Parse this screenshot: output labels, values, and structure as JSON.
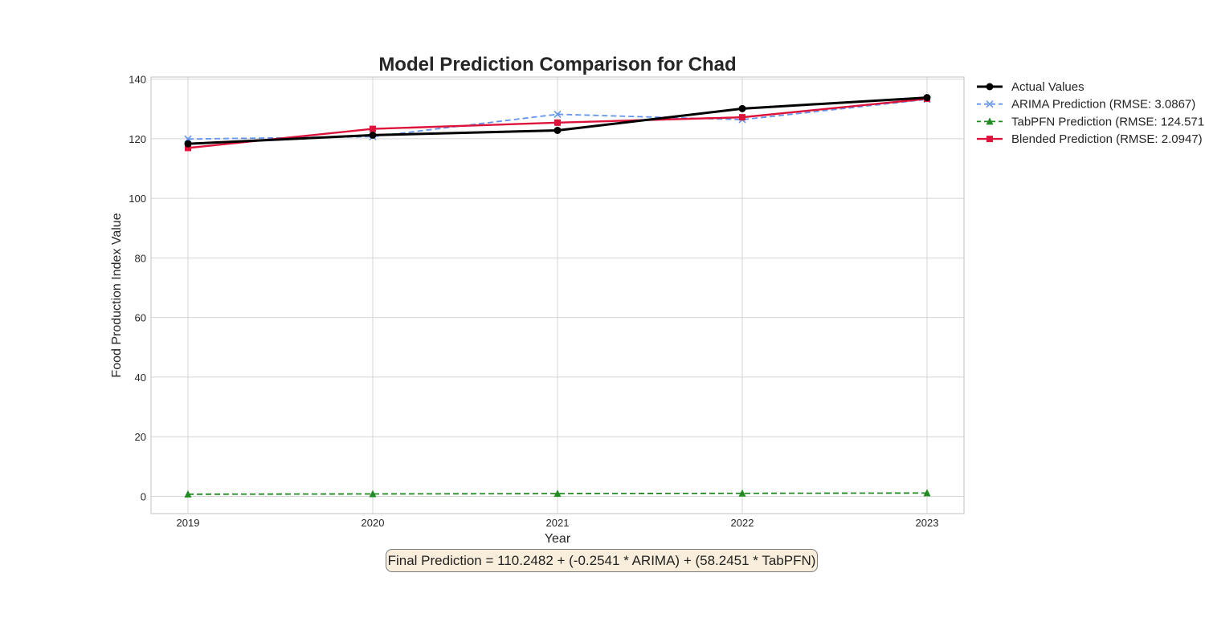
{
  "chart_data": {
    "type": "line",
    "title": "Model Prediction Comparison for Chad",
    "xlabel": "Year",
    "ylabel": "Food Production Index Value",
    "x": [
      2019,
      2020,
      2021,
      2022,
      2023
    ],
    "xlim": [
      2018.8,
      2023.2
    ],
    "ylim": [
      -5.8,
      140.7
    ],
    "yticks": [
      0,
      20,
      40,
      60,
      80,
      100,
      120,
      140
    ],
    "grid": true,
    "legend_position": "outside-right",
    "series": [
      {
        "name": "Actual Values",
        "values": [
          118.3,
          121.2,
          122.8,
          130.1,
          133.8
        ],
        "color": "#000000",
        "dash": "solid",
        "marker": "circle"
      },
      {
        "name": "ARIMA Prediction (RMSE: 3.0867)",
        "values": [
          119.9,
          120.7,
          128.2,
          126.4,
          133.2
        ],
        "color": "#6495ed",
        "dash": "dashed",
        "marker": "x"
      },
      {
        "name": "TabPFN Prediction (RMSE: 124.571",
        "values": [
          0.7,
          0.8,
          0.9,
          1.0,
          1.1
        ],
        "color": "#228b22",
        "dash": "dashed",
        "marker": "triangle"
      },
      {
        "name": "Blended Prediction (RMSE: 2.0947)",
        "values": [
          116.9,
          123.3,
          125.4,
          127.2,
          133.4
        ],
        "color": "#dc143c",
        "dash": "solid",
        "marker": "square"
      }
    ]
  },
  "annotation": {
    "formula": "Final Prediction = 110.2482 + (-0.2541 * ARIMA) + (58.2451 * TabPFN)"
  }
}
